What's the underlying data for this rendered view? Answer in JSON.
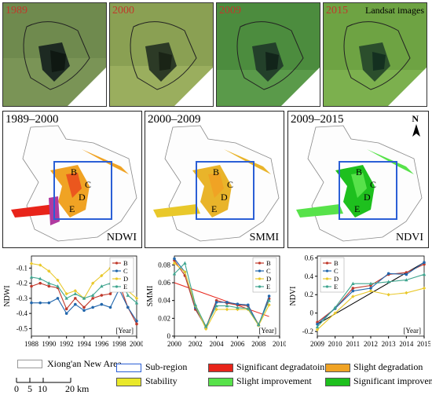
{
  "satellite": {
    "tiles": [
      {
        "year": "1989",
        "extra": ""
      },
      {
        "year": "2000",
        "extra": ""
      },
      {
        "year": "2009",
        "extra": ""
      },
      {
        "year": "2015",
        "extra": "Landsat images"
      }
    ]
  },
  "maps": [
    {
      "period": "1989–2000",
      "index": "NDWI",
      "north": ""
    },
    {
      "period": "2000–2009",
      "index": "SMMI",
      "north": ""
    },
    {
      "period": "2009–2015",
      "index": "NDVI",
      "north": "N"
    }
  ],
  "subregions": [
    "B",
    "C",
    "D",
    "E"
  ],
  "colors": {
    "sig_degradation": "#e8241a",
    "slight_degradation": "#f0a324",
    "stability": "#e9e82a",
    "slight_improvement": "#57e24a",
    "sig_improvement": "#1ec01e",
    "subregion_box": "#2b5fd6",
    "B": "#c0392b",
    "C": "#2166ac",
    "D": "#e9c82a",
    "E": "#3fa58f",
    "trend": "#e8241a",
    "trend_ndvi": "#000000"
  },
  "chart_data": [
    {
      "type": "line",
      "ylabel": "NDWI",
      "xlabel": "Year",
      "x": [
        1988,
        1989,
        1990,
        1991,
        1992,
        1993,
        1994,
        1995,
        1996,
        1997,
        1998,
        1999,
        2000
      ],
      "xticks": [
        "1988",
        "1990",
        "1992",
        "1994",
        "1996",
        "1998",
        "2000"
      ],
      "yticks": [
        "-0.1",
        "-0.2",
        "-0.3",
        "-0.4",
        "-0.5"
      ],
      "ylim": [
        -0.55,
        -0.02
      ],
      "series": [
        {
          "name": "B",
          "values": [
            -0.22,
            -0.2,
            -0.22,
            -0.23,
            -0.37,
            -0.3,
            -0.36,
            -0.3,
            -0.28,
            -0.27,
            -0.2,
            -0.36,
            -0.47
          ]
        },
        {
          "name": "C",
          "values": [
            -0.33,
            -0.33,
            -0.33,
            -0.3,
            -0.4,
            -0.34,
            -0.38,
            -0.36,
            -0.34,
            -0.36,
            -0.24,
            -0.36,
            -0.45
          ]
        },
        {
          "name": "D",
          "values": [
            -0.07,
            -0.08,
            -0.12,
            -0.18,
            -0.27,
            -0.25,
            -0.3,
            -0.2,
            -0.15,
            -0.1,
            -0.07,
            -0.25,
            -0.3
          ]
        },
        {
          "name": "E",
          "values": [
            -0.16,
            -0.17,
            -0.2,
            -0.22,
            -0.3,
            -0.27,
            -0.3,
            -0.28,
            -0.22,
            -0.2,
            -0.15,
            -0.28,
            -0.33
          ]
        }
      ]
    },
    {
      "type": "line",
      "ylabel": "SMMI",
      "xlabel": "Year",
      "x": [
        2000,
        2001,
        2002,
        2003,
        2004,
        2005,
        2006,
        2007,
        2008,
        2009
      ],
      "xticks": [
        "2000",
        "2002",
        "2004",
        "2006",
        "2008",
        "2010"
      ],
      "yticks": [
        "0.08",
        "0.06",
        "0.04",
        "0.02",
        "0"
      ],
      "ylim": [
        0,
        0.09
      ],
      "series": [
        {
          "name": "B",
          "values": [
            0.085,
            0.068,
            0.03,
            0.01,
            0.04,
            0.037,
            0.035,
            0.034,
            0.013,
            0.042
          ]
        },
        {
          "name": "C",
          "values": [
            0.087,
            0.072,
            0.032,
            0.009,
            0.038,
            0.038,
            0.036,
            0.035,
            0.012,
            0.045
          ]
        },
        {
          "name": "D",
          "values": [
            0.082,
            0.072,
            0.034,
            0.008,
            0.03,
            0.03,
            0.03,
            0.03,
            0.012,
            0.035
          ]
        },
        {
          "name": "E",
          "values": [
            0.07,
            0.082,
            0.035,
            0.011,
            0.034,
            0.034,
            0.032,
            0.031,
            0.013,
            0.04
          ]
        }
      ],
      "trend": {
        "x": [
          2000,
          2009
        ],
        "values": [
          0.06,
          0.022
        ]
      }
    },
    {
      "type": "line",
      "ylabel": "NDVI",
      "xlabel": "Year",
      "x": [
        2009,
        2010,
        2011,
        2012,
        2013,
        2014,
        2015
      ],
      "xticks": [
        "2009",
        "2010",
        "2011",
        "2012",
        "2013",
        "2014",
        "2015"
      ],
      "yticks": [
        "0.6",
        "0.4",
        "0.2",
        "0",
        "-0.2"
      ],
      "ylim": [
        -0.25,
        0.62
      ],
      "series": [
        {
          "name": "B",
          "values": [
            -0.1,
            0.05,
            0.27,
            0.3,
            0.42,
            0.44,
            0.53
          ]
        },
        {
          "name": "C",
          "values": [
            -0.12,
            0.05,
            0.24,
            0.27,
            0.43,
            0.42,
            0.55
          ]
        },
        {
          "name": "D",
          "values": [
            -0.18,
            0.0,
            0.18,
            0.24,
            0.2,
            0.22,
            0.27
          ]
        },
        {
          "name": "E",
          "values": [
            -0.15,
            0.06,
            0.32,
            0.32,
            0.34,
            0.36,
            0.42
          ]
        }
      ],
      "trend": {
        "x": [
          2009,
          2015
        ],
        "values": [
          -0.12,
          0.55
        ]
      }
    }
  ],
  "legend": {
    "area_label": "Xiong'an New Area",
    "scale_ticks": [
      "0",
      "5",
      "10",
      "20 km"
    ],
    "items": [
      {
        "key": "subregion",
        "label": "Sub-region"
      },
      {
        "key": "sig_degradation",
        "label": "Significant degradatoin"
      },
      {
        "key": "slight_degradation",
        "label": "Slight degradation"
      },
      {
        "key": "stability",
        "label": "Stability"
      },
      {
        "key": "slight_improvement",
        "label": "Slight improvement"
      },
      {
        "key": "sig_improvement",
        "label": "Significant improvement"
      }
    ]
  }
}
